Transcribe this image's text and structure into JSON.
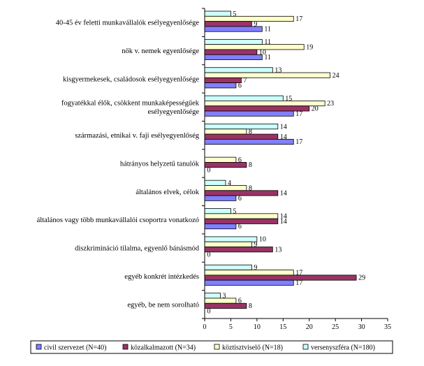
{
  "chart_data": {
    "type": "bar",
    "orientation": "horizontal",
    "xlim": [
      0,
      35
    ],
    "xticks": [
      0,
      5,
      10,
      15,
      20,
      25,
      30,
      35
    ],
    "categories": [
      [
        "40-45 év feletti munkavállalók esélyegyenlősége"
      ],
      [
        "nők v. nemek egyenlősége"
      ],
      [
        "kisgyermekesek, családosok esélyegyenlősége"
      ],
      [
        "fogyatékkal élők, csökkent munkaképességűek",
        "esélyegyenlősége"
      ],
      [
        "származási, etnikai v. faji esélyegyenlőség"
      ],
      [
        "hátrányos helyzetű tanulók"
      ],
      [
        "általános elvek, célok"
      ],
      [
        "általános vagy több munkavállalói csoportra vonatkozó"
      ],
      [
        "diszkrimináció tilalma, egyenlő bánásmód"
      ],
      [
        "egyéb konkrét intézkedés"
      ],
      [
        "egyéb, be nem sorolható"
      ]
    ],
    "series": [
      {
        "name": "civil szervezet (N=40)",
        "color": "#8080ff",
        "values": [
          11,
          11,
          6,
          17,
          17,
          0,
          6,
          6,
          0,
          17,
          0
        ]
      },
      {
        "name": "közalkalmazott (N=34)",
        "color": "#993366",
        "values": [
          9,
          10,
          7,
          20,
          14,
          8,
          14,
          14,
          13,
          29,
          8
        ]
      },
      {
        "name": "köztisztviselő (N=18)",
        "color": "#ffffcc",
        "values": [
          17,
          19,
          24,
          23,
          8,
          6,
          8,
          14,
          9,
          17,
          6
        ]
      },
      {
        "name": "versenyszféra (N=180)",
        "color": "#ccffff",
        "values": [
          5,
          11,
          13,
          15,
          14,
          null,
          4,
          5,
          10,
          9,
          3
        ]
      }
    ],
    "legend_position": "bottom",
    "grid": false
  }
}
